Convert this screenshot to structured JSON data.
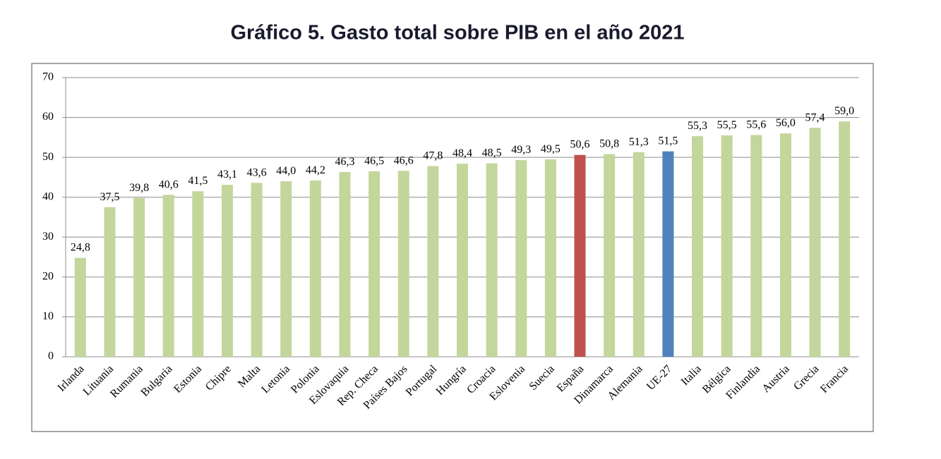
{
  "chart_data": {
    "type": "bar",
    "title": "Gráfico 5. Gasto total sobre PIB en el año 2021",
    "categories": [
      "Irlanda",
      "Lituania",
      "Rumania",
      "Bulgaria",
      "Estonia",
      "Chipre",
      "Malta",
      "Letonia",
      "Polonia",
      "Eslovaquia",
      "Rep. Checa",
      "Países Bajos",
      "Portugal",
      "Hungría",
      "Croacia",
      "Eslovenia",
      "Suecia",
      "España",
      "Dinamarca",
      "Alemania",
      "UE-27",
      "Italia",
      "Bélgica",
      "Finlandia",
      "Austria",
      "Grecia",
      "Francia"
    ],
    "values": [
      24.8,
      37.5,
      39.8,
      40.6,
      41.5,
      43.1,
      43.6,
      44.0,
      44.2,
      46.3,
      46.5,
      46.6,
      47.8,
      48.4,
      48.5,
      49.3,
      49.5,
      50.6,
      50.8,
      51.3,
      51.5,
      55.3,
      55.5,
      55.6,
      56.0,
      57.4,
      59.0
    ],
    "value_labels": [
      "24,8",
      "37,5",
      "39,8",
      "40,6",
      "41,5",
      "43,1",
      "43,6",
      "44,0",
      "44,2",
      "46,3",
      "46,5",
      "46,6",
      "47,8",
      "48,4",
      "48,5",
      "49,3",
      "49,5",
      "50,6",
      "50,8",
      "51,3",
      "51,5",
      "55,3",
      "55,5",
      "55,6",
      "56,0",
      "57,4",
      "59,0"
    ],
    "colors": [
      "#c3d69b",
      "#c3d69b",
      "#c3d69b",
      "#c3d69b",
      "#c3d69b",
      "#c3d69b",
      "#c3d69b",
      "#c3d69b",
      "#c3d69b",
      "#c3d69b",
      "#c3d69b",
      "#c3d69b",
      "#c3d69b",
      "#c3d69b",
      "#c3d69b",
      "#c3d69b",
      "#c3d69b",
      "#c0504d",
      "#c3d69b",
      "#c3d69b",
      "#4f81bd",
      "#c3d69b",
      "#c3d69b",
      "#c3d69b",
      "#c3d69b",
      "#c3d69b",
      "#c3d69b"
    ],
    "ylim": [
      0,
      70
    ],
    "yticks": [
      0,
      10,
      20,
      30,
      40,
      50,
      60,
      70
    ],
    "grid": true
  }
}
